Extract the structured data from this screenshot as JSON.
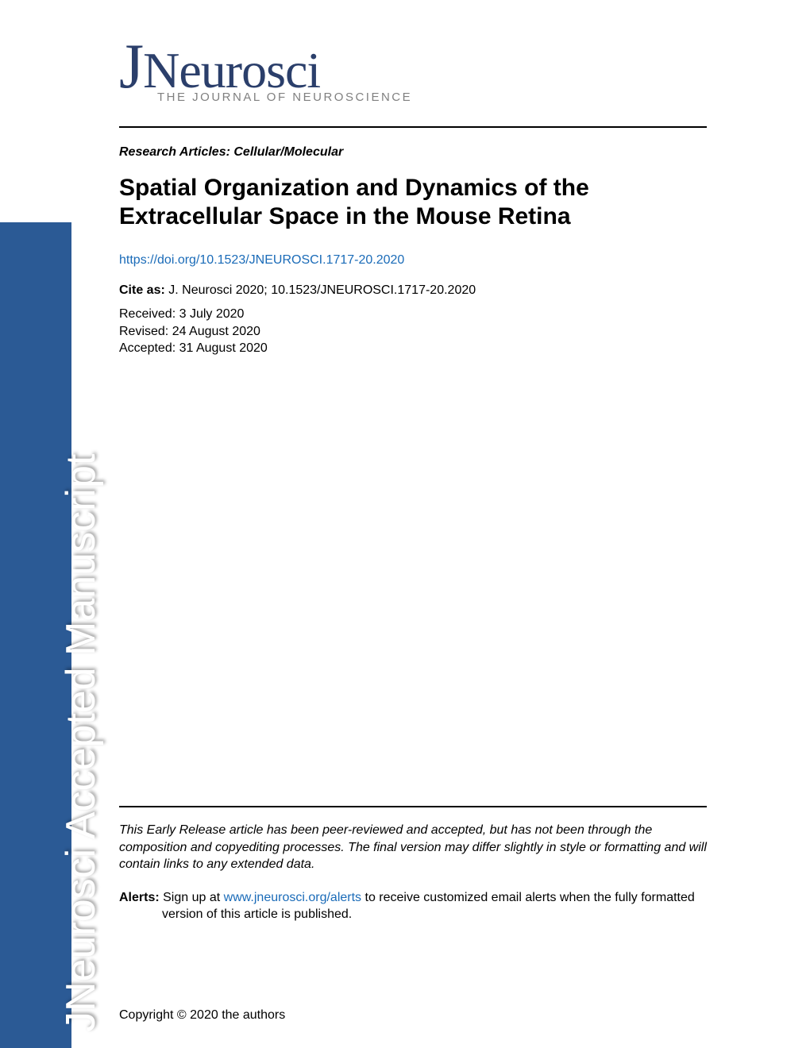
{
  "sidebar": {
    "text": "JNeurosci Accepted Manuscript",
    "band_color": "#2b5a95",
    "text_color": "#ffffff",
    "fontsize": 52
  },
  "logo": {
    "main": "JNeurosci",
    "sub": "THE JOURNAL OF NEUROSCIENCE",
    "main_color": "#2b3f6b",
    "sub_color": "#808080"
  },
  "article": {
    "category": "Research Articles: Cellular/Molecular",
    "title": "Spatial Organization and Dynamics of the Extracellular Space in the Mouse Retina",
    "doi": "https://doi.org/10.1523/JNEUROSCI.1717-20.2020",
    "cite_label": "Cite as:",
    "cite_text": " J. Neurosci 2020; 10.1523/JNEUROSCI.1717-20.2020",
    "received": "Received: 3 July 2020",
    "revised": "Revised: 24 August 2020",
    "accepted": "Accepted: 31 August 2020"
  },
  "disclaimer": "This Early Release article has been peer-reviewed and accepted, but has not been through the composition and copyediting processes. The final version may differ slightly in style or formatting and will contain links to any extended data.",
  "alerts": {
    "label": "Alerts:",
    "pre": " Sign up at ",
    "link": "www.jneurosci.org/alerts",
    "post": " to receive customized email alerts when the fully formatted version of this article is published."
  },
  "copyright": "Copyright © 2020 the authors",
  "colors": {
    "link": "#1a6bb8",
    "rule": "#000000",
    "background": "#ffffff"
  }
}
